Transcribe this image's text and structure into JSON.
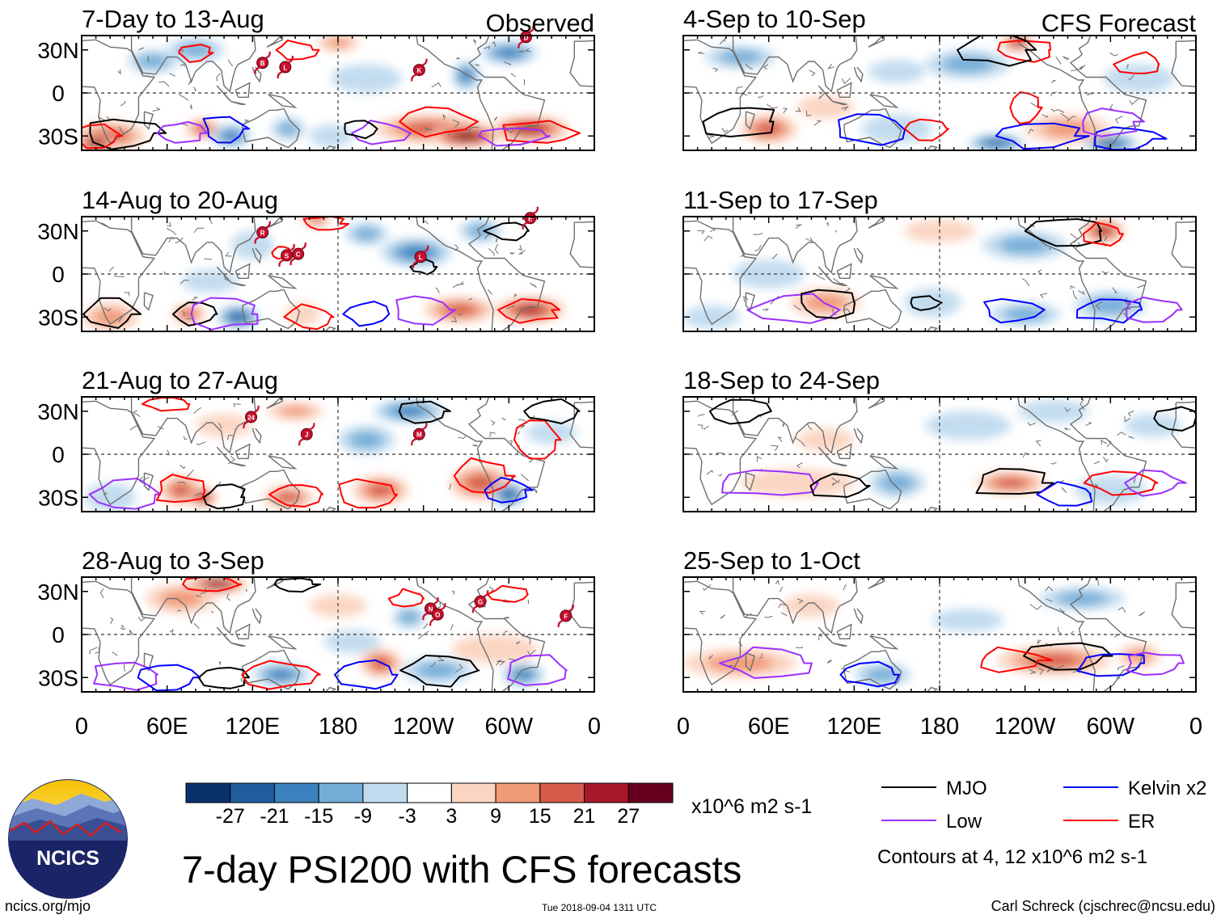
{
  "title": "7-day PSI200 with CFS forecasts",
  "website": "ncics.org/mjo",
  "timestamp": "Tue 2018-09-04 1311 UTC",
  "author": "Carl Schreck (cjschrec@ncsu.edu)",
  "logo": {
    "text": "NCICS",
    "icon": "ncics-logo-icon"
  },
  "column_headers": {
    "left": "Observed",
    "right": "CFS Forecast"
  },
  "colors": {
    "mjo": "#000000",
    "low": "#9b30ff",
    "kelvin": "#0000ff",
    "er": "#ff0000",
    "land": "#6e6e6e",
    "frame": "#000000"
  },
  "chart_data": {
    "type": "heatmap",
    "variable": "7-day PSI200 anomaly",
    "units": "x10^6 m2 s-1",
    "lat_range": [
      -40,
      40
    ],
    "lon_range": [
      0,
      360
    ],
    "y_ticks": [
      "30N",
      "0",
      "30S"
    ],
    "x_ticks": [
      "0",
      "60E",
      "120E",
      "180",
      "120W",
      "60W",
      "0"
    ],
    "colorbar": {
      "levels": [
        "-27",
        "-21",
        "-15",
        "-9",
        "-3",
        "3",
        "9",
        "15",
        "21",
        "27"
      ],
      "colors": [
        "#08306b",
        "#1f5d9e",
        "#3a81bd",
        "#74aed8",
        "#c2dcef",
        "#ffffff",
        "#fbd5c2",
        "#f19a78",
        "#d55b4a",
        "#a8172a",
        "#67001f"
      ]
    },
    "contour_legend": {
      "items": [
        {
          "label": "MJO",
          "color": "#000000"
        },
        {
          "label": "Kelvin x2",
          "color": "#0000ff"
        },
        {
          "label": "Low",
          "color": "#9b30ff"
        },
        {
          "label": "ER",
          "color": "#ff0000"
        }
      ],
      "note": "Contours at 4, 12 x10^6 m2 s-1"
    },
    "panels": [
      {
        "column": "observed",
        "title": "7-Day to 13-Aug",
        "storms": [
          {
            "label": "B",
            "lon": 127,
            "lat": 21
          },
          {
            "label": "L",
            "lon": 143,
            "lat": 18
          },
          {
            "label": "K",
            "lon": 237,
            "lat": 16
          },
          {
            "label": "D",
            "lon": 312,
            "lat": 39
          }
        ]
      },
      {
        "column": "observed",
        "title": "14-Aug to 20-Aug",
        "storms": [
          {
            "label": "R",
            "lon": 127,
            "lat": 29
          },
          {
            "label": "S",
            "lon": 144,
            "lat": 13
          },
          {
            "label": "C",
            "lon": 152,
            "lat": 14
          },
          {
            "label": "L",
            "lon": 238,
            "lat": 12
          },
          {
            "label": "E",
            "lon": 315,
            "lat": 39
          }
        ]
      },
      {
        "column": "observed",
        "title": "21-Aug to 27-Aug",
        "storms": [
          {
            "label": "24",
            "lon": 119,
            "lat": 26
          },
          {
            "label": "J",
            "lon": 158,
            "lat": 14
          },
          {
            "label": "M",
            "lon": 237,
            "lat": 14
          }
        ]
      },
      {
        "column": "observed",
        "title": "28-Aug to 3-Sep",
        "storms": [
          {
            "label": "N",
            "lon": 245,
            "lat": 18
          },
          {
            "label": "O",
            "lon": 250,
            "lat": 14
          },
          {
            "label": "G",
            "lon": 280,
            "lat": 23
          },
          {
            "label": "F",
            "lon": 340,
            "lat": 13
          }
        ]
      },
      {
        "column": "forecast",
        "title": "4-Sep to 10-Sep",
        "storms": []
      },
      {
        "column": "forecast",
        "title": "11-Sep to 17-Sep",
        "storms": []
      },
      {
        "column": "forecast",
        "title": "18-Sep to 24-Sep",
        "storms": []
      },
      {
        "column": "forecast",
        "title": "25-Sep to 1-Oct",
        "storms": []
      }
    ]
  }
}
